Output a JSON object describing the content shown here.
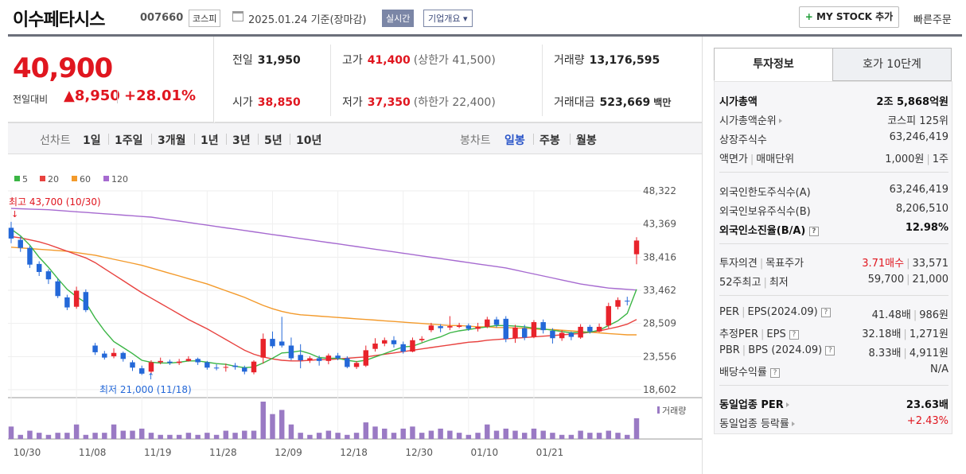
{
  "header": {
    "stock_name": "이수페타시스",
    "stock_code": "007660",
    "market": "코스피",
    "date_note": "2025.01.24 기준(장마감)",
    "realtime_label": "실시간",
    "company_overview_label": "기업개요",
    "mystock_label": "MY STOCK 추가",
    "quick_order_label": "빠른주문"
  },
  "price": {
    "current": "40,900",
    "change_label": "전일대비",
    "change_value": "8,950",
    "change_rate": "+28.01%"
  },
  "quotes": {
    "prev_close_label": "전일",
    "prev_close": "31,950",
    "open_label": "시가",
    "open": "38,850",
    "high_label": "고가",
    "high": "41,400",
    "upper_limit": "(상한가 41,500)",
    "low_label": "저가",
    "low": "37,350",
    "lower_limit": "(하한가 22,400)",
    "volume_label": "거래량",
    "volume": "13,176,595",
    "amount_label": "거래대금",
    "amount": "523,669",
    "amount_unit": "백만"
  },
  "period_tabs": {
    "line_label": "선차트",
    "line_items": [
      "1일",
      "1주일",
      "3개월",
      "1년",
      "3년",
      "5년",
      "10년"
    ],
    "candle_label": "봉차트",
    "candle_items": [
      "일봉",
      "주봉",
      "월봉"
    ],
    "active_candle": "일봉"
  },
  "chart_data": {
    "type": "candlestick",
    "legend": [
      {
        "name": "5",
        "color": "#3bb545"
      },
      {
        "name": "20",
        "color": "#e8423f"
      },
      {
        "name": "60",
        "color": "#f39a2b"
      },
      {
        "name": "120",
        "color": "#a66ad0"
      }
    ],
    "y_ticks": [
      "48,322",
      "43,369",
      "38,416",
      "33,462",
      "28,509",
      "23,556",
      "18,602"
    ],
    "ylim": [
      18602,
      48322
    ],
    "x_ticks": [
      "10/30",
      "11/08",
      "11/19",
      "11/28",
      "12/09",
      "12/18",
      "12/30",
      "01/10",
      "01/21"
    ],
    "x_tick_index": [
      0,
      7,
      14,
      21,
      28,
      35,
      42,
      49,
      56
    ],
    "high_annotation": "최고 43,700 (10/30)",
    "low_annotation": "최저 21,000 (11/18)",
    "volume_label": "거래량",
    "candles": [
      [
        42800,
        41200,
        43700,
        40500
      ],
      [
        41000,
        39800,
        41500,
        39200
      ],
      [
        39800,
        37300,
        40100,
        36800
      ],
      [
        37400,
        36200,
        37800,
        35600
      ],
      [
        36300,
        35100,
        36600,
        34400
      ],
      [
        34800,
        32600,
        35200,
        32300
      ],
      [
        32400,
        30900,
        32800,
        30500
      ],
      [
        31000,
        33400,
        34000,
        30700
      ],
      [
        33200,
        30500,
        33600,
        30200
      ],
      [
        25200,
        24200,
        25600,
        23800
      ],
      [
        24000,
        23400,
        24400,
        23100
      ],
      [
        23600,
        24100,
        24800,
        23300
      ],
      [
        24100,
        23200,
        24300,
        22800
      ],
      [
        22700,
        21900,
        23000,
        21400
      ],
      [
        21800,
        21000,
        22200,
        20800
      ],
      [
        21300,
        22700,
        23000,
        21000
      ],
      [
        22700,
        22900,
        23400,
        22400
      ],
      [
        22800,
        22600,
        23100,
        22300
      ],
      [
        22600,
        22800,
        23200,
        22300
      ],
      [
        22900,
        23200,
        23600,
        22800
      ],
      [
        23200,
        22700,
        23400,
        22300
      ],
      [
        22700,
        21900,
        22900,
        21600
      ],
      [
        21900,
        21800,
        22400,
        21500
      ],
      [
        21900,
        22000,
        22500,
        21300
      ],
      [
        22200,
        22000,
        22600,
        21600
      ],
      [
        21900,
        21300,
        22200,
        20900
      ],
      [
        21200,
        22800,
        23000,
        20900
      ],
      [
        23400,
        26200,
        27000,
        22500
      ],
      [
        26200,
        25100,
        27300,
        24800
      ],
      [
        25800,
        25200,
        29500,
        24900
      ],
      [
        25200,
        23300,
        26400,
        23000
      ],
      [
        23800,
        23000,
        25400,
        21800
      ],
      [
        23000,
        23300,
        23600,
        22600
      ],
      [
        23300,
        22900,
        23700,
        22200
      ],
      [
        22900,
        23700,
        24000,
        22400
      ],
      [
        23700,
        23300,
        24100,
        23000
      ],
      [
        23300,
        22000,
        23600,
        21800
      ],
      [
        22000,
        22600,
        22900,
        21700
      ],
      [
        22200,
        24500,
        25200,
        22000
      ],
      [
        24700,
        25500,
        26300,
        24300
      ],
      [
        25500,
        26000,
        26400,
        25100
      ],
      [
        26000,
        25400,
        26600,
        24900
      ],
      [
        25400,
        24300,
        25800,
        24000
      ],
      [
        24300,
        26000,
        26400,
        24200
      ],
      [
        26000,
        26200,
        26600,
        25700
      ],
      [
        27500,
        28200,
        28600,
        27200
      ],
      [
        28100,
        27800,
        28400,
        27200
      ],
      [
        27900,
        28100,
        29600,
        27500
      ],
      [
        28000,
        28200,
        28600,
        27800
      ],
      [
        28200,
        27700,
        28500,
        27400
      ],
      [
        27700,
        28000,
        28600,
        27300
      ],
      [
        28000,
        29100,
        29500,
        27800
      ],
      [
        29100,
        28300,
        29500,
        27900
      ],
      [
        29200,
        26200,
        29600,
        25700
      ],
      [
        26300,
        27900,
        28300,
        25600
      ],
      [
        27800,
        26400,
        28300,
        26000
      ],
      [
        26500,
        28700,
        29000,
        26300
      ],
      [
        28700,
        27500,
        29100,
        27000
      ],
      [
        27400,
        26300,
        27800,
        25500
      ],
      [
        26300,
        27100,
        27500,
        25900
      ],
      [
        27100,
        26500,
        27300,
        26000
      ],
      [
        26400,
        28000,
        28400,
        26200
      ],
      [
        28000,
        27300,
        28300,
        27000
      ],
      [
        27300,
        28000,
        28500,
        27200
      ],
      [
        28200,
        31100,
        31600,
        27800
      ],
      [
        31000,
        32000,
        32400,
        30600
      ],
      [
        31900,
        31800,
        32500,
        31200
      ],
      [
        38850,
        40900,
        41400,
        37350
      ]
    ],
    "volumes": [
      3.0,
      1.0,
      2.0,
      1.5,
      1.0,
      1.5,
      1.5,
      3.5,
      1.0,
      1.5,
      1.5,
      3.5,
      2.0,
      2.0,
      2.5,
      1.5,
      1.0,
      1.0,
      1.0,
      1.5,
      1.0,
      1.5,
      1.0,
      2.0,
      1.5,
      2.0,
      2.0,
      9.0,
      6.0,
      7.0,
      3.5,
      1.5,
      1.0,
      1.5,
      2.0,
      1.5,
      1.0,
      1.5,
      4.0,
      3.0,
      2.5,
      1.5,
      2.5,
      3.0,
      1.5,
      2.0,
      2.5,
      2.0,
      1.5,
      1.0,
      1.5,
      3.5,
      2.0,
      2.5,
      2.0,
      1.5,
      2.5,
      2.0,
      1.5,
      1.0,
      1.0,
      2.0,
      1.5,
      1.5,
      2.0,
      1.5,
      1.0,
      5.0
    ],
    "ma5": [
      42600,
      41600,
      40200,
      38400,
      36900,
      35200,
      33600,
      32500,
      31600,
      29300,
      27400,
      25800,
      24900,
      24000,
      23000,
      22700,
      22600,
      22600,
      22700,
      22900,
      22900,
      22700,
      22500,
      22400,
      22100,
      21900,
      22000,
      22600,
      23300,
      24100,
      24200,
      24400,
      24000,
      23400,
      23300,
      23300,
      23000,
      22800,
      23000,
      23500,
      24000,
      24500,
      25000,
      25100,
      25600,
      26100,
      26500,
      27100,
      27400,
      27600,
      27800,
      28000,
      28200,
      28200,
      28100,
      28000,
      27800,
      27700,
      27500,
      27300,
      27100,
      27200,
      27200,
      27500,
      28200,
      28900,
      30000,
      33600
    ],
    "ma20": [
      41500,
      41300,
      41000,
      40700,
      40300,
      39800,
      39300,
      38800,
      38300,
      37600,
      36700,
      35800,
      34900,
      34000,
      33100,
      32300,
      31500,
      30700,
      29900,
      29100,
      28400,
      27700,
      26900,
      26100,
      25300,
      24500,
      23900,
      23500,
      23200,
      23000,
      22900,
      22900,
      23000,
      23100,
      23100,
      23200,
      23300,
      23400,
      23500,
      23700,
      23900,
      24100,
      24300,
      24500,
      24700,
      24900,
      25100,
      25300,
      25500,
      25700,
      25800,
      26000,
      26100,
      26200,
      26300,
      26400,
      26500,
      26600,
      26700,
      26800,
      26900,
      27000,
      27200,
      27400,
      27700,
      28000,
      28400,
      29100
    ],
    "ma60": [
      39900,
      39800,
      39700,
      39600,
      39500,
      39400,
      39300,
      39100,
      38900,
      38700,
      38400,
      38100,
      37800,
      37500,
      37200,
      36800,
      36400,
      36000,
      35600,
      35200,
      34800,
      34400,
      33900,
      33400,
      32900,
      32400,
      31800,
      31200,
      30700,
      30300,
      30000,
      29800,
      29700,
      29600,
      29500,
      29400,
      29300,
      29200,
      29100,
      29000,
      28900,
      28800,
      28700,
      28600,
      28500,
      28400,
      28300,
      28200,
      28200,
      28100,
      28000,
      28000,
      27900,
      27900,
      27800,
      27800,
      27700,
      27600,
      27600,
      27500,
      27400,
      27300,
      27200,
      27100,
      27000,
      26900,
      26800,
      26800
    ],
    "ma120": [
      45700,
      45650,
      45600,
      45550,
      45500,
      45400,
      45300,
      45200,
      45100,
      45000,
      44900,
      44800,
      44700,
      44600,
      44500,
      44400,
      44200,
      44000,
      43800,
      43600,
      43400,
      43200,
      43000,
      42800,
      42600,
      42400,
      42200,
      42000,
      41800,
      41600,
      41400,
      41200,
      41000,
      40800,
      40600,
      40400,
      40200,
      40000,
      39800,
      39600,
      39400,
      39200,
      39000,
      38800,
      38600,
      38400,
      38200,
      38000,
      37800,
      37600,
      37400,
      37200,
      37000,
      36800,
      36500,
      36200,
      35900,
      35600,
      35300,
      35000,
      34700,
      34400,
      34200,
      34000,
      33800,
      33700,
      33600,
      33500
    ]
  },
  "right_panel": {
    "tabs": [
      "투자정보",
      "호가 10단계"
    ],
    "market_cap_label": "시가총액",
    "market_cap": "2조 5,868억원",
    "market_cap_rank_label": "시가총액순위",
    "market_cap_rank": "코스피 125위",
    "shares_label": "상장주식수",
    "shares": "63,246,419",
    "face_label": "액면가",
    "unit_label": "매매단위",
    "face_value": "1,000원",
    "trade_unit": "1주",
    "foreign_limit_label": "외국인한도주식수(A)",
    "foreign_limit": "63,246,419",
    "foreign_hold_label": "외국인보유주식수(B)",
    "foreign_hold": "8,206,510",
    "foreign_ratio_label": "외국인소진율(B/A)",
    "foreign_ratio": "12.98%",
    "opinion_label": "투자의견",
    "target_label": "목표주가",
    "opinion": "3.71매수",
    "target": "33,571",
    "w52_label": "52주최고",
    "w52_low_label": "최저",
    "w52_high": "59,700",
    "w52_low": "21,000",
    "per_label": "PER",
    "eps_label": "EPS(2024.09)",
    "per": "41.48배",
    "eps": "986원",
    "est_per_label": "추정PER",
    "est_eps_label": "EPS",
    "est_per": "32.18배",
    "est_eps": "1,271원",
    "pbr_label": "PBR",
    "bps_label": "BPS (2024.09)",
    "pbr": "8.33배",
    "bps": "4,911원",
    "dividend_label": "배당수익률",
    "dividend": "N/A",
    "sector_per_label": "동일업종 PER",
    "sector_per": "23.63배",
    "sector_rate_label": "동일업종 등락률",
    "sector_rate": "+2.43%"
  }
}
